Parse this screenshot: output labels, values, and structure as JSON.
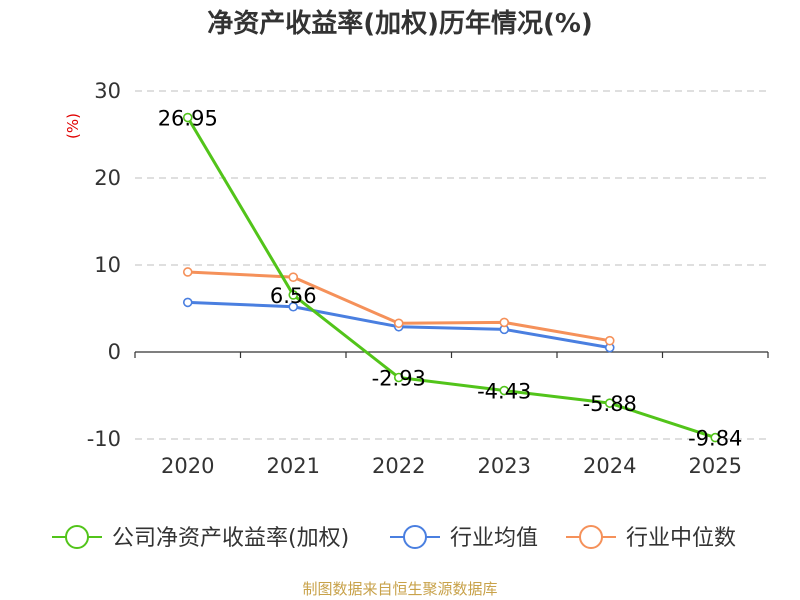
{
  "chart_data": {
    "type": "line",
    "title": "净资产收益率(加权)历年情况(%)",
    "ylabel": "(%)",
    "xlabel": "",
    "categories": [
      "2020",
      "2021",
      "2022",
      "2023",
      "2024",
      "2025"
    ],
    "ylim": [
      -10,
      30
    ],
    "yticks": [
      30,
      20,
      10,
      0,
      -10
    ],
    "grid": true,
    "legend_position": "bottom",
    "series": [
      {
        "name": "公司净资产收益率(加权)",
        "color": "#52c41a",
        "values": [
          26.95,
          6.56,
          -2.93,
          -4.43,
          -5.88,
          -9.84
        ],
        "labels": [
          "26.95",
          "6.56",
          "-2.93",
          "-4.43",
          "-5.88",
          "-9.84"
        ]
      },
      {
        "name": "行业均值",
        "color": "#4a7fe0",
        "values": [
          5.7,
          5.2,
          2.9,
          2.6,
          0.5,
          null
        ]
      },
      {
        "name": "行业中位数",
        "color": "#f5915a",
        "values": [
          9.2,
          8.6,
          3.3,
          3.4,
          1.3,
          null
        ]
      }
    ],
    "source": "制图数据来自恒生聚源数据库"
  }
}
